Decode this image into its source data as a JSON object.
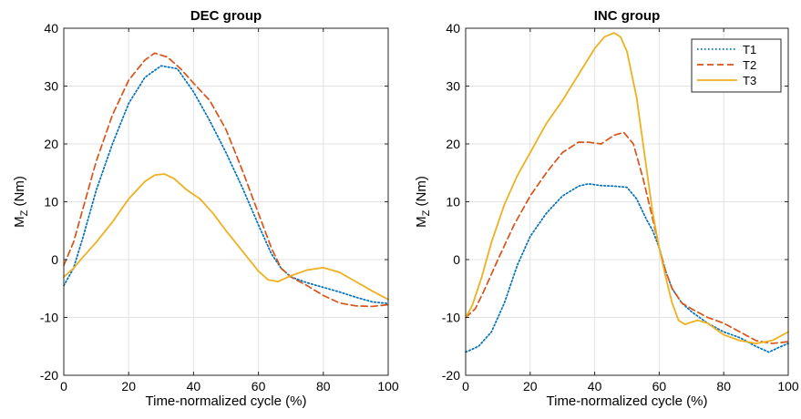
{
  "chart_data": [
    {
      "type": "line",
      "title": "DEC group",
      "xlabel": "Time-normalized cycle (%)",
      "ylabel": "M",
      "ylabel_sub": "Z",
      "ylabel_unit": " (Nm)",
      "xlim": [
        0,
        100
      ],
      "ylim": [
        -20,
        40
      ],
      "xticks": [
        0,
        20,
        40,
        60,
        80,
        100
      ],
      "yticks": [
        -20,
        -10,
        0,
        10,
        20,
        30,
        40
      ],
      "grid": true,
      "legend": null,
      "series": [
        {
          "name": "T1",
          "color": "#0072BD",
          "dash": "dotted",
          "x": [
            0,
            3,
            6,
            10,
            15,
            20,
            25,
            30,
            35,
            40,
            45,
            50,
            55,
            60,
            64,
            67,
            70,
            75,
            80,
            85,
            90,
            95,
            100
          ],
          "y": [
            -4.5,
            -1.5,
            4,
            12,
            20,
            27,
            31.5,
            33.5,
            33,
            29,
            24,
            18.5,
            12.5,
            6,
            1,
            -1.5,
            -3,
            -4,
            -4.8,
            -5.6,
            -6.5,
            -7.3,
            -7.6
          ]
        },
        {
          "name": "T2",
          "color": "#D95319",
          "dash": "dashed",
          "x": [
            0,
            3,
            6,
            10,
            15,
            20,
            25,
            28,
            32,
            36,
            40,
            45,
            50,
            55,
            60,
            64,
            67,
            70,
            75,
            80,
            85,
            90,
            95,
            100
          ],
          "y": [
            -1,
            3,
            9,
            17,
            25,
            31,
            34.5,
            35.7,
            35,
            33,
            30.5,
            27.5,
            22.5,
            15.5,
            8,
            2,
            -1.5,
            -3,
            -4.5,
            -6.2,
            -7.5,
            -8,
            -8.1,
            -7.8
          ]
        },
        {
          "name": "T3",
          "color": "#EDB120",
          "dash": "solid",
          "x": [
            0,
            3,
            6,
            10,
            15,
            20,
            25,
            28,
            31,
            34,
            38,
            42,
            46,
            50,
            55,
            60,
            63,
            66,
            70,
            75,
            80,
            85,
            90,
            95,
            100
          ],
          "y": [
            -3,
            -1.5,
            0.5,
            3,
            6.5,
            10.5,
            13.5,
            14.6,
            14.8,
            14,
            12,
            10.5,
            8,
            5,
            1.5,
            -2,
            -3.5,
            -3.8,
            -2.8,
            -1.8,
            -1.4,
            -2.2,
            -3.8,
            -5.4,
            -6.9
          ]
        }
      ]
    },
    {
      "type": "line",
      "title": "INC group",
      "xlabel": "Time-normalized cycle (%)",
      "ylabel": "M",
      "ylabel_sub": "Z",
      "ylabel_unit": " (Nm)",
      "xlim": [
        0,
        100
      ],
      "ylim": [
        -20,
        40
      ],
      "xticks": [
        0,
        20,
        40,
        60,
        80,
        100
      ],
      "yticks": [
        -20,
        -10,
        0,
        10,
        20,
        30,
        40
      ],
      "grid": true,
      "legend": "top-right",
      "series": [
        {
          "name": "T1",
          "color": "#0072BD",
          "dash": "dotted",
          "x": [
            0,
            4,
            8,
            12,
            16,
            20,
            25,
            30,
            35,
            38,
            42,
            46,
            50,
            53,
            56,
            58,
            60,
            62,
            64,
            67,
            70,
            75,
            80,
            85,
            90,
            94,
            97,
            100
          ],
          "y": [
            -16,
            -15,
            -12.5,
            -7.5,
            -1,
            4,
            8,
            11,
            12.7,
            13.1,
            12.8,
            12.7,
            12.5,
            10.5,
            7,
            5,
            2,
            -2,
            -5,
            -7.5,
            -9,
            -11,
            -12.5,
            -13.5,
            -15,
            -16,
            -15.2,
            -14.5
          ]
        },
        {
          "name": "T2",
          "color": "#D95319",
          "dash": "dashed",
          "x": [
            0,
            3,
            6,
            10,
            15,
            20,
            25,
            30,
            35,
            38,
            42,
            46,
            49,
            52,
            55,
            58,
            60,
            62,
            64,
            67,
            70,
            75,
            80,
            85,
            90,
            95,
            100
          ],
          "y": [
            -10,
            -8.5,
            -5,
            0,
            6,
            11,
            15,
            18.5,
            20.3,
            20.3,
            20,
            21.5,
            22,
            20,
            14,
            7,
            2,
            -2,
            -5,
            -7.5,
            -8.5,
            -10,
            -11,
            -12.5,
            -14,
            -14.5,
            -14.2
          ]
        },
        {
          "name": "T3",
          "color": "#EDB120",
          "dash": "solid",
          "x": [
            0,
            2,
            5,
            8,
            12,
            16,
            20,
            25,
            30,
            35,
            40,
            43,
            46,
            48,
            50,
            53,
            56,
            58,
            60,
            62,
            64,
            66,
            68,
            70,
            72,
            75,
            80,
            85,
            90,
            95,
            100
          ],
          "y": [
            -10,
            -8,
            -3,
            3,
            9.5,
            14.5,
            18.5,
            23.5,
            27.5,
            32,
            36.5,
            38.5,
            39.2,
            38.5,
            36,
            28,
            16,
            8,
            2,
            -3,
            -7.5,
            -10.5,
            -11.2,
            -10.8,
            -10.5,
            -11,
            -13,
            -14,
            -14.5,
            -14,
            -12.5
          ]
        }
      ]
    }
  ]
}
